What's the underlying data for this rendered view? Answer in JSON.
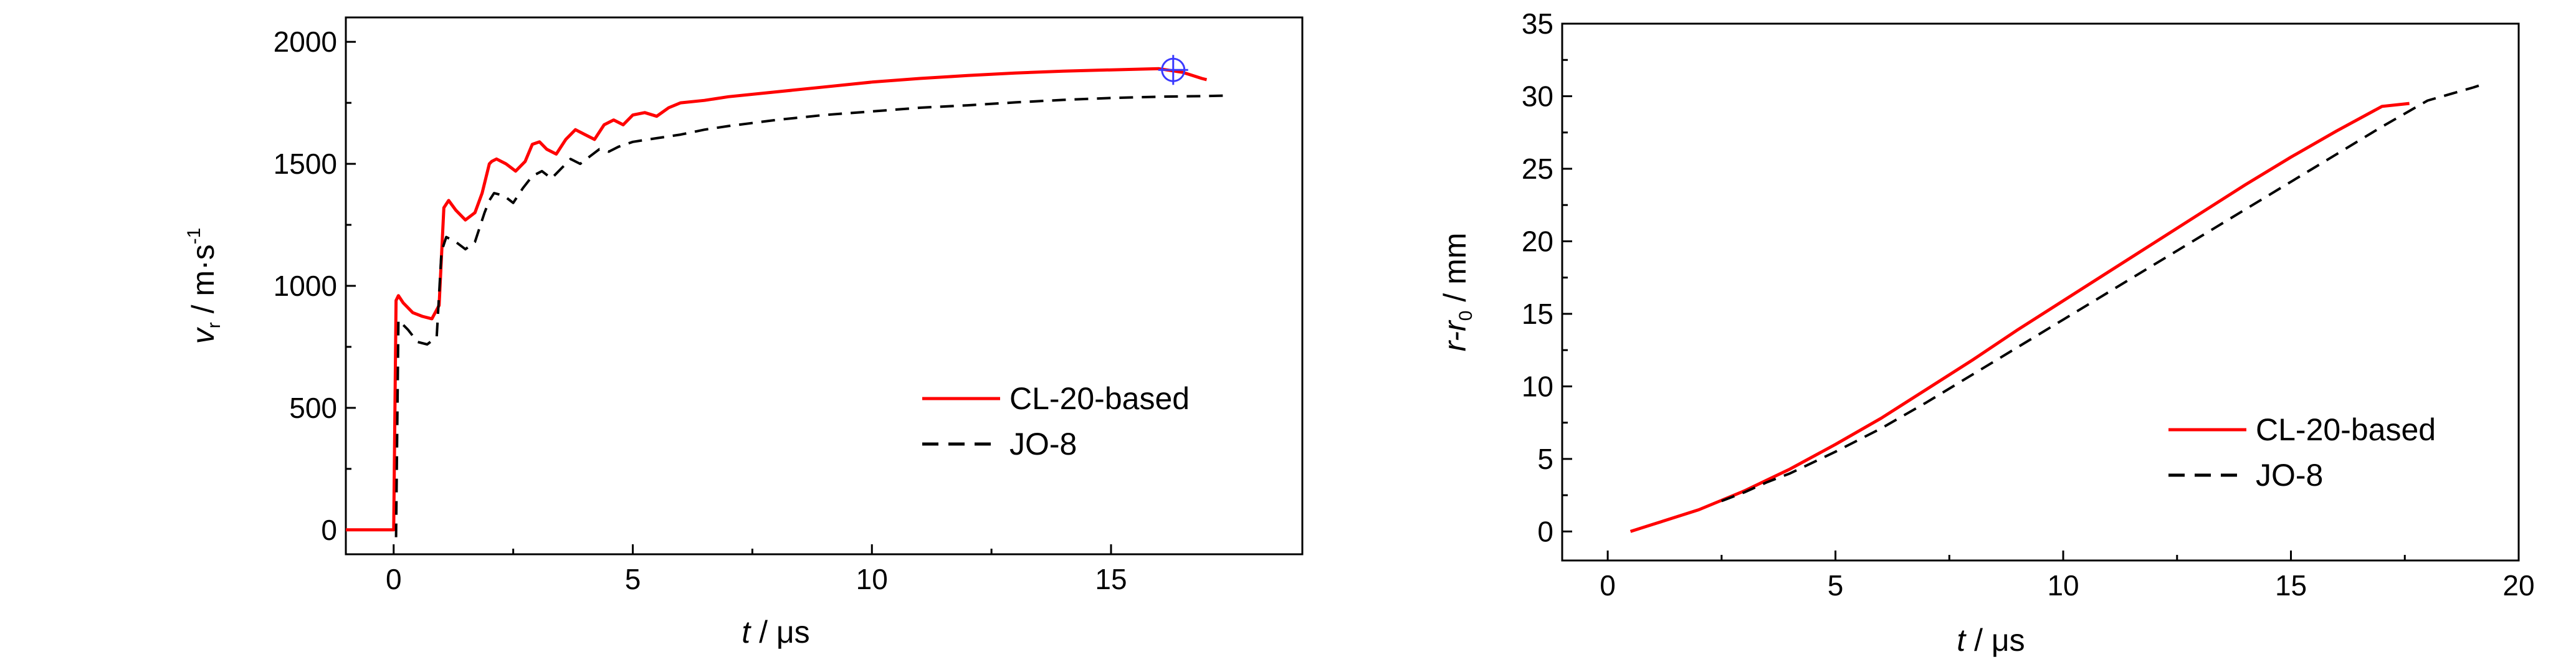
{
  "chart_data": [
    {
      "type": "line",
      "xlabel_var": "t",
      "xlabel_unit": " / μs",
      "ylabel_var": "v",
      "ylabel_sub": "r",
      "ylabel_unit": " / m·s",
      "ylabel_sup": "-1",
      "xlim": [
        -1,
        19
      ],
      "ylim": [
        -100,
        2100
      ],
      "xticks": [
        0,
        5,
        10,
        15
      ],
      "yticks": [
        0,
        500,
        1000,
        1500,
        2000
      ],
      "grid": false,
      "legend_position": "bottom-right",
      "series": [
        {
          "name": "CL-20-based",
          "color": "#ff0000",
          "style": "solid",
          "x": [
            -1,
            0.0,
            0.05,
            0.1,
            0.2,
            0.4,
            0.6,
            0.8,
            0.95,
            1.05,
            1.15,
            1.3,
            1.5,
            1.7,
            1.85,
            2.0,
            2.05,
            2.15,
            2.35,
            2.55,
            2.75,
            2.9,
            3.05,
            3.2,
            3.4,
            3.6,
            3.8,
            4.0,
            4.2,
            4.4,
            4.6,
            4.8,
            5.0,
            5.25,
            5.5,
            5.75,
            6.0,
            6.5,
            7.0,
            8.0,
            9.0,
            10.0,
            11.0,
            12.0,
            13.0,
            14.0,
            15.0,
            16.0,
            16.5,
            16.9,
            17.0
          ],
          "y": [
            0,
            0,
            940,
            960,
            930,
            890,
            875,
            865,
            920,
            1320,
            1350,
            1310,
            1270,
            1300,
            1380,
            1500,
            1510,
            1520,
            1500,
            1470,
            1510,
            1580,
            1590,
            1560,
            1540,
            1600,
            1640,
            1620,
            1600,
            1660,
            1680,
            1660,
            1700,
            1710,
            1695,
            1730,
            1750,
            1760,
            1775,
            1795,
            1815,
            1835,
            1850,
            1862,
            1872,
            1880,
            1885,
            1890,
            1875,
            1850,
            1845
          ]
        },
        {
          "name": "JO-8",
          "color": "#000000",
          "style": "dashed",
          "x": [
            0.05,
            0.1,
            0.3,
            0.5,
            0.7,
            0.9,
            1.0,
            1.1,
            1.3,
            1.5,
            1.7,
            1.9,
            2.0,
            2.1,
            2.3,
            2.5,
            2.7,
            2.9,
            3.1,
            3.3,
            3.5,
            3.7,
            3.9,
            4.1,
            4.3,
            4.5,
            4.7,
            5.0,
            5.5,
            6.0,
            6.5,
            7.0,
            8.0,
            9.0,
            10.0,
            11.0,
            12.0,
            13.0,
            14.0,
            15.0,
            16.0,
            17.0,
            17.5
          ],
          "y": [
            -30,
            860,
            820,
            770,
            760,
            790,
            1140,
            1200,
            1180,
            1150,
            1180,
            1300,
            1350,
            1380,
            1370,
            1340,
            1400,
            1450,
            1470,
            1440,
            1480,
            1520,
            1500,
            1530,
            1560,
            1550,
            1570,
            1590,
            1605,
            1620,
            1640,
            1655,
            1680,
            1700,
            1715,
            1730,
            1740,
            1752,
            1762,
            1770,
            1775,
            1778,
            1780
          ]
        }
      ],
      "marker": {
        "x": 16.3,
        "y": 1885,
        "color": "#3a3aff"
      }
    },
    {
      "type": "line",
      "xlabel_var": "t",
      "xlabel_unit": " / μs",
      "ylabel_var": "r-r",
      "ylabel_sub": "0",
      "ylabel_unit": " / mm",
      "xlim": [
        -1,
        20
      ],
      "ylim": [
        -2,
        35
      ],
      "xticks": [
        0,
        5,
        10,
        15,
        20
      ],
      "yticks": [
        0,
        5,
        10,
        15,
        20,
        25,
        30,
        35
      ],
      "grid": false,
      "legend_position": "bottom-right",
      "series": [
        {
          "name": "CL-20-based",
          "color": "#ff0000",
          "style": "solid",
          "x": [
            0.5,
            1.0,
            2.0,
            3.0,
            4.0,
            5.0,
            6.0,
            7.0,
            8.0,
            9.0,
            10.0,
            11.0,
            12.0,
            13.0,
            14.0,
            15.0,
            16.0,
            17.0,
            17.6
          ],
          "y": [
            0,
            0.5,
            1.5,
            2.8,
            4.3,
            6.0,
            7.8,
            9.8,
            11.8,
            13.9,
            15.9,
            17.9,
            19.9,
            21.9,
            23.9,
            25.8,
            27.6,
            29.3,
            29.5
          ]
        },
        {
          "name": "JO-8",
          "color": "#000000",
          "style": "dashed",
          "x": [
            2.5,
            3.0,
            3.5,
            4.0,
            5.0,
            6.0,
            7.0,
            8.0,
            9.0,
            10.0,
            11.0,
            12.0,
            13.0,
            14.0,
            15.0,
            16.0,
            17.0,
            18.0,
            19.0,
            19.2
          ],
          "y": [
            2.1,
            2.7,
            3.4,
            4.0,
            5.5,
            7.1,
            8.9,
            10.8,
            12.7,
            14.6,
            16.5,
            18.4,
            20.3,
            22.2,
            24.1,
            26.0,
            27.9,
            29.7,
            30.6,
            30.8
          ]
        }
      ]
    }
  ]
}
